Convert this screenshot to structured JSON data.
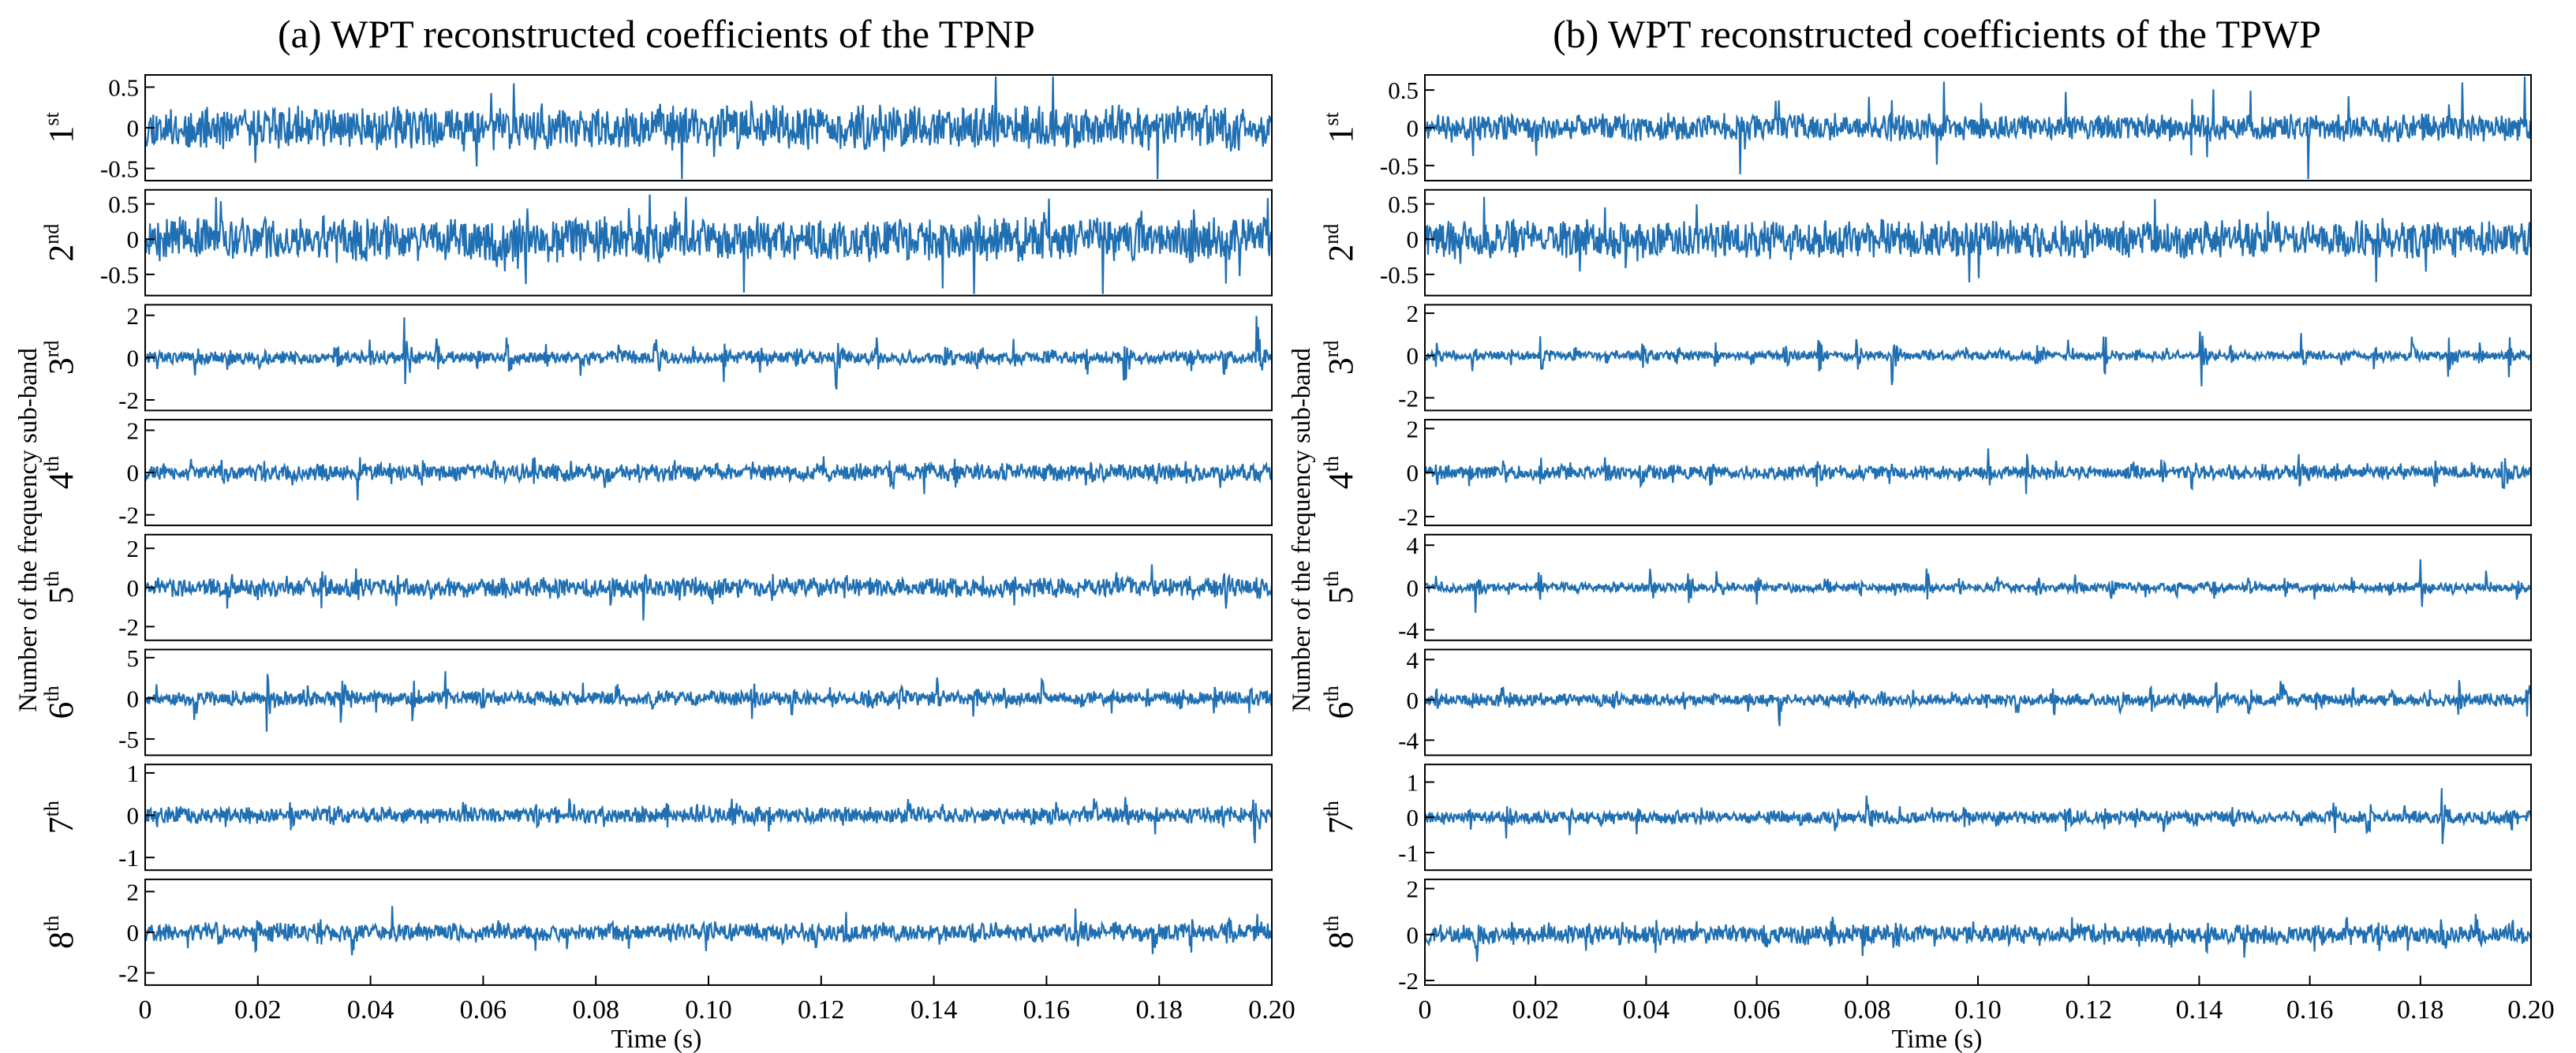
{
  "chart_data": [
    {
      "type": "line",
      "title": "(a) WPT reconstructed coefficients of the TPNP",
      "xlabel": "Time (s)",
      "ylabel": "Number of the frequency sub-band",
      "xlim": [
        0,
        0.2
      ],
      "x_ticks": [
        "0",
        "0.02",
        "0.04",
        "0.06",
        "0.08",
        "0.10",
        "0.12",
        "0.14",
        "0.16",
        "0.18",
        "0.20"
      ],
      "line_color": "#1f6fb2",
      "subplots": [
        {
          "label": "1",
          "suffix": "st",
          "ylim": [
            -0.65,
            0.65
          ],
          "yticks": [
            "0.5",
            "0",
            "-0.5"
          ],
          "ytick_values": [
            0.5,
            0,
            -0.5
          ],
          "amplitude": 0.3,
          "spike": 0.58,
          "bursty": false,
          "seed": 11
        },
        {
          "label": "2",
          "suffix": "nd",
          "ylim": [
            -0.8,
            0.7
          ],
          "yticks": [
            "0.5",
            "0",
            "-0.5"
          ],
          "ytick_values": [
            0.5,
            0,
            -0.5
          ],
          "amplitude": 0.35,
          "spike": 0.7,
          "bursty": false,
          "seed": 12
        },
        {
          "label": "3",
          "suffix": "rd",
          "ylim": [
            -2.5,
            2.5
          ],
          "yticks": [
            "2",
            "0",
            "-2"
          ],
          "ytick_values": [
            2,
            0,
            -2
          ],
          "amplitude": 0.35,
          "spike": 2.3,
          "bursty": true,
          "seed": 13
        },
        {
          "label": "4",
          "suffix": "th",
          "ylim": [
            -2.5,
            2.5
          ],
          "yticks": [
            "2",
            "0",
            "-2"
          ],
          "ytick_values": [
            2,
            0,
            -2
          ],
          "amplitude": 0.45,
          "spike": 2.0,
          "bursty": true,
          "seed": 14
        },
        {
          "label": "5",
          "suffix": "th",
          "ylim": [
            -2.7,
            2.7
          ],
          "yticks": [
            "2",
            "0",
            "-2"
          ],
          "ytick_values": [
            2,
            0,
            -2
          ],
          "amplitude": 0.55,
          "spike": 2.4,
          "bursty": true,
          "seed": 15
        },
        {
          "label": "6",
          "suffix": "th",
          "ylim": [
            -7,
            6
          ],
          "yticks": [
            "5",
            "0",
            "-5"
          ],
          "ytick_values": [
            5,
            0,
            -5
          ],
          "amplitude": 1.0,
          "spike": 6.0,
          "bursty": true,
          "seed": 16
        },
        {
          "label": "7",
          "suffix": "th",
          "ylim": [
            -1.3,
            1.2
          ],
          "yticks": [
            "1",
            "0",
            "-1"
          ],
          "ytick_values": [
            1,
            0,
            -1
          ],
          "amplitude": 0.22,
          "spike": 1.15,
          "bursty": true,
          "seed": 17
        },
        {
          "label": "8",
          "suffix": "th",
          "ylim": [
            -2.6,
            2.6
          ],
          "yticks": [
            "2",
            "0",
            "-2"
          ],
          "ytick_values": [
            2,
            0,
            -2
          ],
          "amplitude": 0.5,
          "spike": 2.4,
          "bursty": true,
          "seed": 18
        }
      ]
    },
    {
      "type": "line",
      "title": "(b) WPT reconstructed coefficients of the TPWP",
      "xlabel": "Time (s)",
      "ylabel": "Number of the frequency sub-band",
      "xlim": [
        0,
        0.2
      ],
      "x_ticks": [
        "0",
        "0.02",
        "0.04",
        "0.06",
        "0.08",
        "0.10",
        "0.12",
        "0.14",
        "0.16",
        "0.18",
        "0.20"
      ],
      "line_color": "#1f6fb2",
      "subplots": [
        {
          "label": "1",
          "suffix": "st",
          "ylim": [
            -0.7,
            0.7
          ],
          "yticks": [
            "0.5",
            "0",
            "-0.5"
          ],
          "ytick_values": [
            0.5,
            0,
            -0.5
          ],
          "amplitude": 0.2,
          "spike": 0.55,
          "bursty": false,
          "seed": 21
        },
        {
          "label": "2",
          "suffix": "nd",
          "ylim": [
            -0.8,
            0.7
          ],
          "yticks": [
            "0.5",
            "0",
            "-0.5"
          ],
          "ytick_values": [
            0.5,
            0,
            -0.5
          ],
          "amplitude": 0.3,
          "spike": 0.65,
          "bursty": false,
          "seed": 22
        },
        {
          "label": "3",
          "suffix": "rd",
          "ylim": [
            -2.6,
            2.4
          ],
          "yticks": [
            "2",
            "0",
            "-2"
          ],
          "ytick_values": [
            2,
            0,
            -2
          ],
          "amplitude": 0.25,
          "spike": 2.2,
          "bursty": true,
          "seed": 23
        },
        {
          "label": "4",
          "suffix": "th",
          "ylim": [
            -2.4,
            2.4
          ],
          "yticks": [
            "2",
            "0",
            "-2"
          ],
          "ytick_values": [
            2,
            0,
            -2
          ],
          "amplitude": 0.35,
          "spike": 2.0,
          "bursty": true,
          "seed": 24
        },
        {
          "label": "5",
          "suffix": "th",
          "ylim": [
            -5,
            5
          ],
          "yticks": [
            "4",
            "0",
            "-4"
          ],
          "ytick_values": [
            4,
            0,
            -4
          ],
          "amplitude": 0.5,
          "spike": 4.5,
          "bursty": true,
          "seed": 25
        },
        {
          "label": "6",
          "suffix": "th",
          "ylim": [
            -5.5,
            5
          ],
          "yticks": [
            "4",
            "0",
            "-4"
          ],
          "ytick_values": [
            4,
            0,
            -4
          ],
          "amplitude": 0.7,
          "spike": 4.8,
          "bursty": true,
          "seed": 26
        },
        {
          "label": "7",
          "suffix": "th",
          "ylim": [
            -1.5,
            1.5
          ],
          "yticks": [
            "1",
            "0",
            "-1"
          ],
          "ytick_values": [
            1,
            0,
            -1
          ],
          "amplitude": 0.2,
          "spike": 1.35,
          "bursty": true,
          "seed": 27
        },
        {
          "label": "8",
          "suffix": "th",
          "ylim": [
            -2.2,
            2.4
          ],
          "yticks": [
            "2",
            "0",
            "-2"
          ],
          "ytick_values": [
            2,
            0,
            -2
          ],
          "amplitude": 0.45,
          "spike": 2.2,
          "bursty": true,
          "seed": 28
        }
      ]
    }
  ]
}
